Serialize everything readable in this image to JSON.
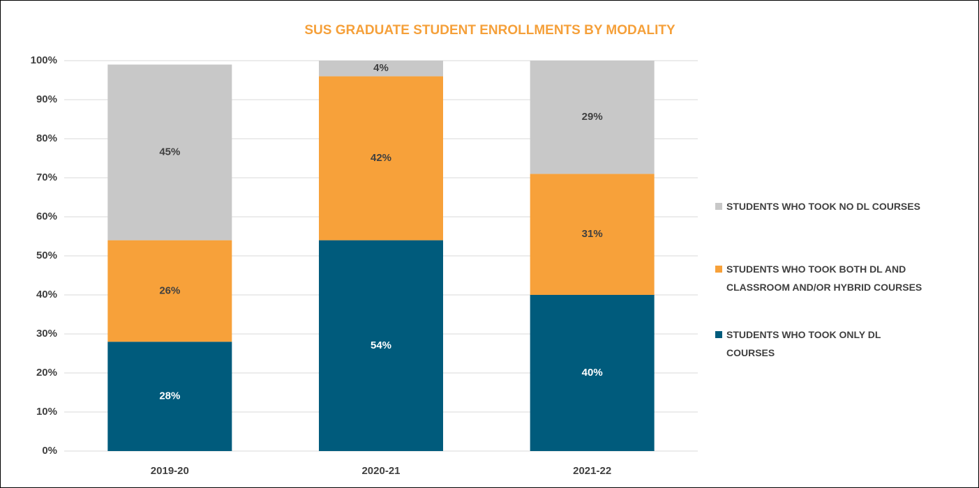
{
  "chart_data": {
    "type": "stacked_bar",
    "title": "SUS GRADUATE STUDENT ENROLLMENTS BY MODALITY",
    "title_color": "#f5a03a",
    "categories": [
      "2019-20",
      "2020-21",
      "2021-22"
    ],
    "series": [
      {
        "name": "STUDENTS WHO TOOK ONLY DL COURSES",
        "color": "#005b7c",
        "label_color": "#ffffff",
        "values": [
          28,
          54,
          40
        ],
        "value_labels": [
          "28%",
          "54%",
          "40%"
        ]
      },
      {
        "name": "STUDENTS WHO TOOK BOTH DL AND CLASSROOM AND/OR HYBRID COURSES",
        "color": "#f7a13a",
        "label_color": "#404040",
        "values": [
          26,
          42,
          31
        ],
        "value_labels": [
          "26%",
          "42%",
          "31%"
        ]
      },
      {
        "name": "STUDENTS WHO TOOK NO DL COURSES",
        "color": "#c8c8c8",
        "label_color": "#404040",
        "values": [
          45,
          4,
          29
        ],
        "value_labels": [
          "45%",
          "4%",
          "29%"
        ]
      }
    ],
    "ylim": [
      0,
      100
    ],
    "yticks": [
      {
        "value": 0,
        "label": "0%"
      },
      {
        "value": 10,
        "label": "10%"
      },
      {
        "value": 20,
        "label": "20%"
      },
      {
        "value": 30,
        "label": "30%"
      },
      {
        "value": 40,
        "label": "40%"
      },
      {
        "value": 50,
        "label": "50%"
      },
      {
        "value": 60,
        "label": "60%"
      },
      {
        "value": 70,
        "label": "70%"
      },
      {
        "value": 80,
        "label": "80%"
      },
      {
        "value": 90,
        "label": "90%"
      },
      {
        "value": 100,
        "label": "100%"
      }
    ],
    "grid": true,
    "legend": "right"
  }
}
